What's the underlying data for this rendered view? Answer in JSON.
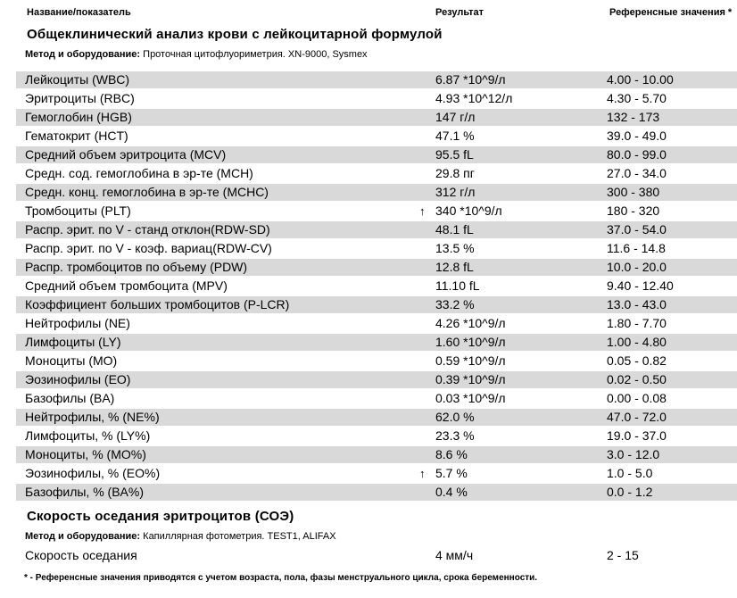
{
  "colors": {
    "row_stripe": "#d9d9d9",
    "text": "#000000"
  },
  "columns": {
    "name": "Название/показатель",
    "result": "Результат",
    "reference": "Референсные значения *"
  },
  "sections": [
    {
      "title": "Общеклинический анализ крови с лейкоцитарной формулой",
      "method_label": "Метод и оборудование:",
      "method_value": "Проточная цитофлуориметрия. XN-9000, Sysmex",
      "rows": [
        {
          "name": "Лейкоциты (WBC)",
          "flag": "",
          "result": "6.87 *10^9/л",
          "reference": "4.00 - 10.00"
        },
        {
          "name": "Эритроциты (RBC)",
          "flag": "",
          "result": "4.93 *10^12/л",
          "reference": "4.30 - 5.70"
        },
        {
          "name": "Гемоглобин (HGB)",
          "flag": "",
          "result": "147 г/л",
          "reference": "132 - 173"
        },
        {
          "name": "Гематокрит (HCT)",
          "flag": "",
          "result": "47.1 %",
          "reference": "39.0 - 49.0"
        },
        {
          "name": "Средний объем эритроцита (MCV)",
          "flag": "",
          "result": "95.5 fL",
          "reference": "80.0 - 99.0"
        },
        {
          "name": "Средн. сод. гемоглобина в эр-те (MCH)",
          "flag": "",
          "result": "29.8 пг",
          "reference": "27.0 - 34.0"
        },
        {
          "name": "Средн. конц. гемоглобина в эр-те (MCHC)",
          "flag": "",
          "result": "312 г/л",
          "reference": "300 - 380"
        },
        {
          "name": "Тромбоциты (PLT)",
          "flag": "↑",
          "result": "340 *10^9/л",
          "reference": "180 - 320"
        },
        {
          "name": "Распр. эрит. по V - станд отклон(RDW-SD)",
          "flag": "",
          "result": "48.1 fL",
          "reference": "37.0 - 54.0"
        },
        {
          "name": "Распр. эрит. по V - коэф. вариац(RDW-CV)",
          "flag": "",
          "result": "13.5 %",
          "reference": "11.6 - 14.8"
        },
        {
          "name": "Распр. тромбоцитов по объему (PDW)",
          "flag": "",
          "result": "12.8 fL",
          "reference": "10.0 - 20.0"
        },
        {
          "name": "Средний объем тромбоцита (MPV)",
          "flag": "",
          "result": "11.10 fL",
          "reference": "9.40 - 12.40"
        },
        {
          "name": "Коэффициент больших тромбоцитов (P-LCR)",
          "flag": "",
          "result": "33.2 %",
          "reference": "13.0 - 43.0"
        },
        {
          "name": "Нейтрофилы (NE)",
          "flag": "",
          "result": "4.26 *10^9/л",
          "reference": "1.80 - 7.70"
        },
        {
          "name": "Лимфоциты (LY)",
          "flag": "",
          "result": "1.60 *10^9/л",
          "reference": "1.00 - 4.80"
        },
        {
          "name": "Моноциты (MO)",
          "flag": "",
          "result": "0.59 *10^9/л",
          "reference": "0.05 - 0.82"
        },
        {
          "name": "Эозинофилы (EO)",
          "flag": "",
          "result": "0.39 *10^9/л",
          "reference": "0.02 - 0.50"
        },
        {
          "name": "Базофилы (BA)",
          "flag": "",
          "result": "0.03 *10^9/л",
          "reference": "0.00 - 0.08"
        },
        {
          "name": "Нейтрофилы, % (NE%)",
          "flag": "",
          "result": "62.0 %",
          "reference": "47.0 - 72.0"
        },
        {
          "name": "Лимфоциты, % (LY%)",
          "flag": "",
          "result": "23.3 %",
          "reference": "19.0 - 37.0"
        },
        {
          "name": "Моноциты, % (MO%)",
          "flag": "",
          "result": "8.6 %",
          "reference": "3.0 - 12.0"
        },
        {
          "name": "Эозинофилы, % (EO%)",
          "flag": "↑",
          "result": "5.7 %",
          "reference": "1.0 - 5.0"
        },
        {
          "name": "Базофилы, % (BA%)",
          "flag": "",
          "result": "0.4 %",
          "reference": "0.0 - 1.2"
        }
      ]
    },
    {
      "title": "Скорость оседания эритроцитов (СОЭ)",
      "method_label": "Метод и оборудование:",
      "method_value": "Капиллярная фотометрия. TEST1, ALIFAX",
      "rows": [
        {
          "name": "Скорость оседания",
          "flag": "",
          "result": "4 мм/ч",
          "reference": "2 - 15"
        }
      ]
    }
  ],
  "footnote": "* - Референсные значения приводятся с учетом возраста, пола, фазы менструального цикла, срока беременности."
}
